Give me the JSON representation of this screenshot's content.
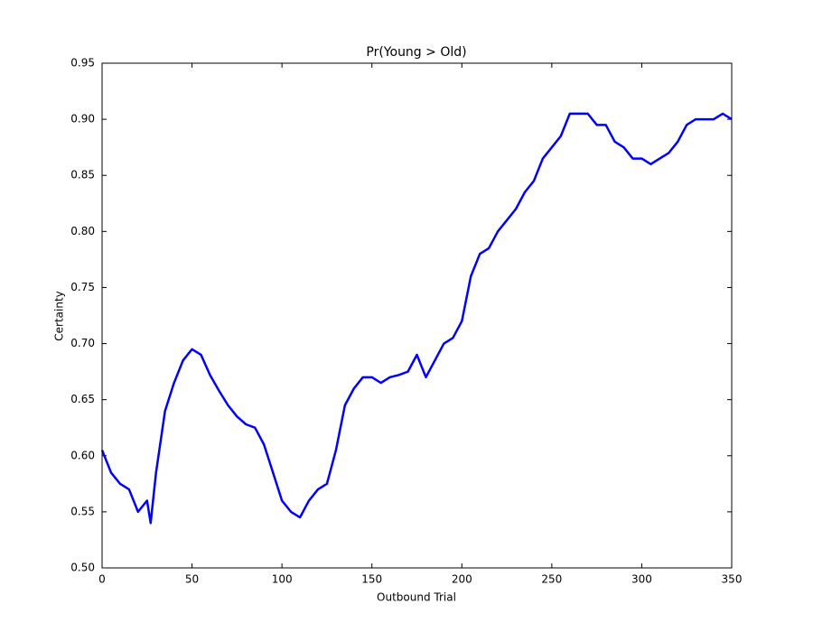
{
  "chart_data": {
    "type": "line",
    "title": "Pr(Young > Old)",
    "x_label": "Outbound Trial",
    "y_label": "Certainty",
    "x": [
      0,
      5,
      10,
      15,
      20,
      25,
      27,
      30,
      35,
      40,
      45,
      50,
      55,
      60,
      65,
      70,
      75,
      80,
      85,
      90,
      95,
      100,
      105,
      110,
      115,
      120,
      125,
      130,
      135,
      140,
      145,
      150,
      155,
      160,
      165,
      170,
      175,
      180,
      185,
      190,
      195,
      200,
      205,
      210,
      215,
      220,
      225,
      230,
      235,
      240,
      245,
      250,
      255,
      260,
      265,
      270,
      275,
      280,
      285,
      290,
      295,
      300,
      305,
      310,
      315,
      320,
      325,
      330,
      335,
      340,
      345,
      350
    ],
    "series": [
      {
        "name": "Certainty",
        "color": "#0000ff",
        "values": [
          0.605,
          0.585,
          0.575,
          0.57,
          0.55,
          0.56,
          0.54,
          0.585,
          0.64,
          0.665,
          0.685,
          0.695,
          0.69,
          0.672,
          0.658,
          0.645,
          0.635,
          0.628,
          0.625,
          0.61,
          0.585,
          0.56,
          0.55,
          0.545,
          0.56,
          0.57,
          0.575,
          0.605,
          0.645,
          0.66,
          0.67,
          0.67,
          0.665,
          0.67,
          0.672,
          0.675,
          0.69,
          0.67,
          0.685,
          0.7,
          0.705,
          0.72,
          0.76,
          0.78,
          0.785,
          0.8,
          0.81,
          0.82,
          0.835,
          0.845,
          0.865,
          0.875,
          0.885,
          0.905,
          0.905,
          0.905,
          0.895,
          0.895,
          0.88,
          0.875,
          0.865,
          0.865,
          0.86,
          0.865,
          0.87,
          0.88,
          0.895,
          0.9,
          0.9,
          0.9,
          0.905,
          0.9
        ]
      }
    ],
    "xlim": [
      0,
      350
    ],
    "ylim": [
      0.5,
      0.95
    ],
    "xticks": [
      0,
      50,
      100,
      150,
      200,
      250,
      300,
      350
    ],
    "yticks": [
      {
        "value": 0.5,
        "label": "0.50"
      },
      {
        "value": 0.55,
        "label": "0.55"
      },
      {
        "value": 0.6,
        "label": "0.60"
      },
      {
        "value": 0.65,
        "label": "0.65"
      },
      {
        "value": 0.7,
        "label": "0.70"
      },
      {
        "value": 0.75,
        "label": "0.75"
      },
      {
        "value": 0.8,
        "label": "0.80"
      },
      {
        "value": 0.85,
        "label": "0.85"
      },
      {
        "value": 0.9,
        "label": "0.90"
      },
      {
        "value": 0.95,
        "label": "0.95"
      }
    ],
    "grid": false
  }
}
